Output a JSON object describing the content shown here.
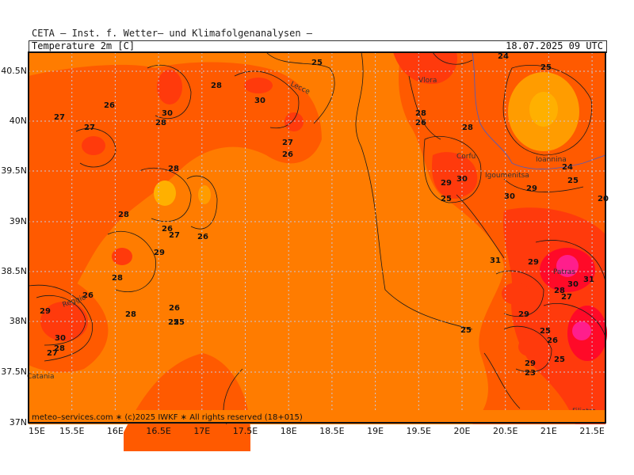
{
  "header": {
    "title": "CETA – Inst. f. Wetter– und Klimafolgenanalysen –",
    "parameter": "Temperature 2m [C]",
    "valid_time": "18.07.2025 09 UTC"
  },
  "map": {
    "lon_ticks": [
      "15E",
      "15.5E",
      "16E",
      "16.5E",
      "17E",
      "17.5E",
      "18E",
      "18.5E",
      "19E",
      "19.5E",
      "20E",
      "20.5E",
      "21E",
      "21.5E"
    ],
    "lat_ticks": [
      "40.5N",
      "40N",
      "39.5N",
      "39N",
      "38.5N",
      "38N",
      "37.5N",
      "37N"
    ],
    "credit": "meteo–services.com ∗ (c)2025 IWKF ∗ All rights reserved (18+015)",
    "colors": {
      "sea_base": "#ff7c00",
      "land_warm": "#ff5a00",
      "hot": "#ff3a0c",
      "very_hot": "#ff0a28",
      "extreme": "#ff1e8c",
      "cooler": "#ff9c00",
      "coolest": "#ffb000",
      "contour": "#1a1a1a"
    },
    "cities": [
      "Vlora",
      "Lecce",
      "Corfu",
      "Igoumenitsa",
      "Ioannina",
      "Reggio",
      "Catania",
      "Filiatra",
      "Patras"
    ],
    "contour_labels": [
      "25",
      "26",
      "27",
      "28",
      "29",
      "30",
      "31",
      "23",
      "24",
      "20"
    ]
  }
}
